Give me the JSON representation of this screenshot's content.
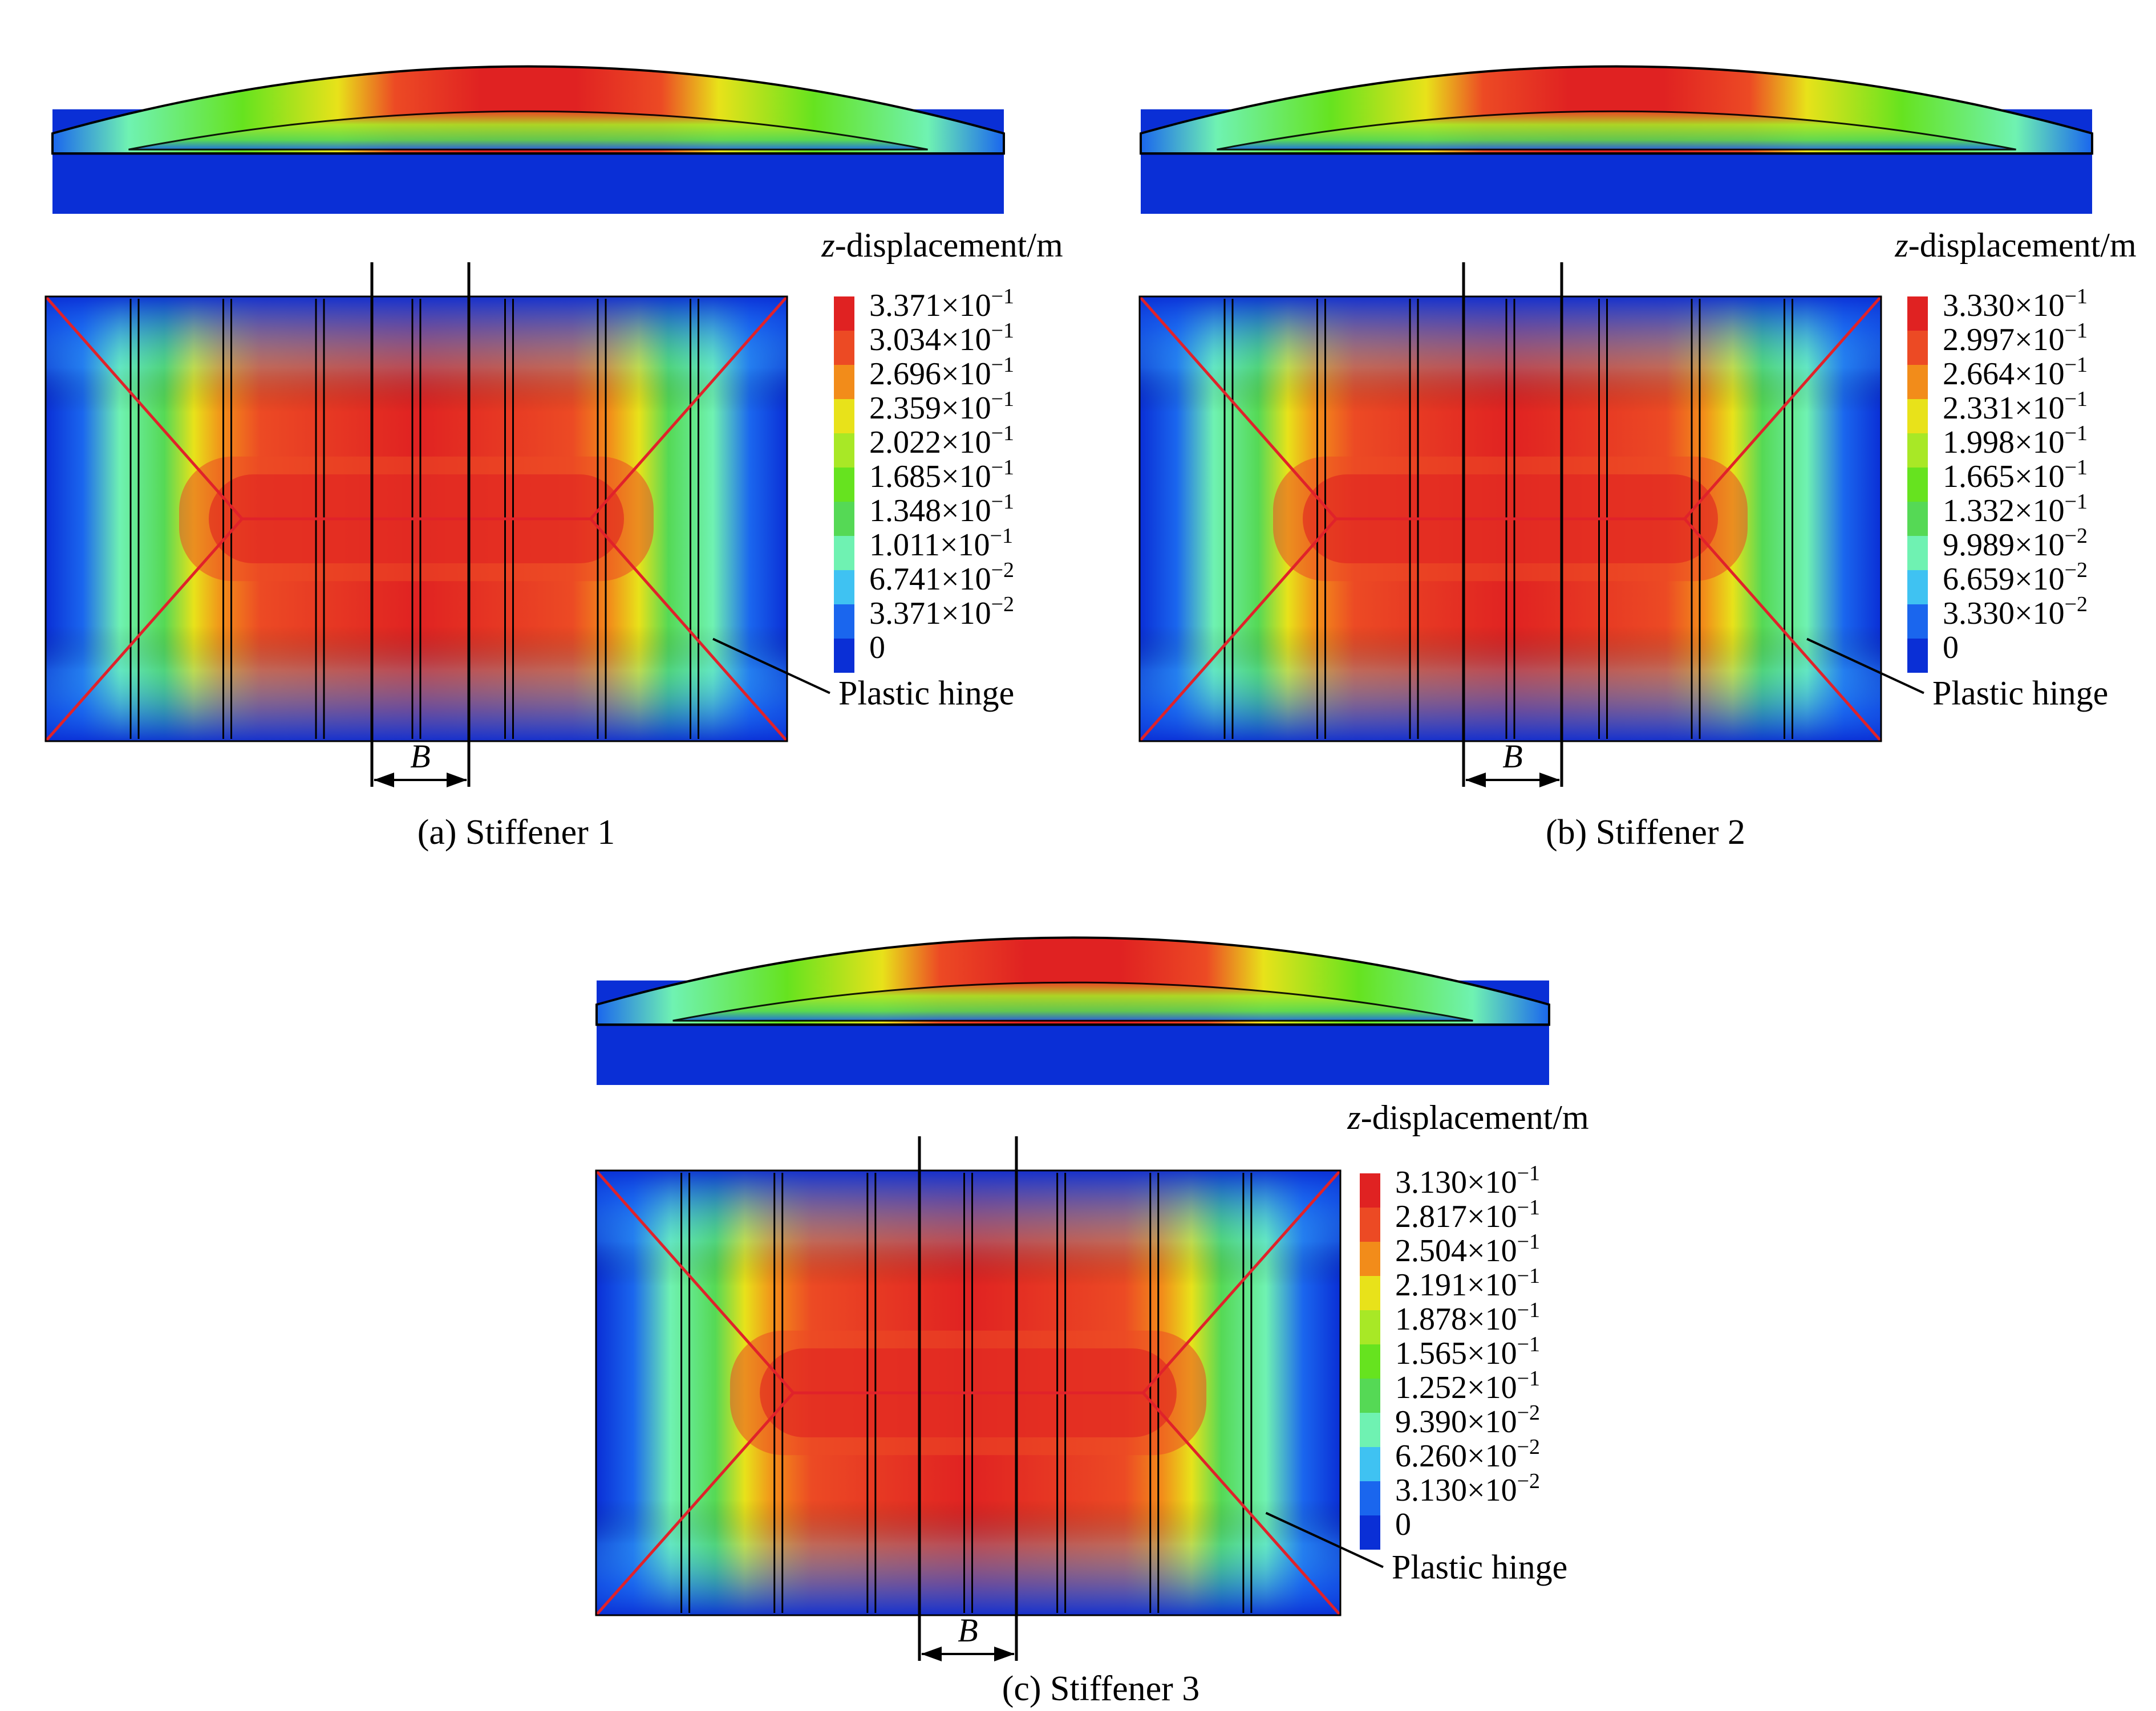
{
  "palette": [
    "#0a2fd6",
    "#1a66ee",
    "#3fc2f2",
    "#6ff2b2",
    "#55d955",
    "#66e31f",
    "#a8e826",
    "#e8e21a",
    "#f28c1a",
    "#ec4a24",
    "#e02222"
  ],
  "colors": {
    "red_hinge_line": "#e0222a",
    "stiffener_line": "#000000"
  },
  "colorbar_title_italic": "z",
  "colorbar_title_rest": "-displacement/m",
  "hinge_label": "Plastic hinge",
  "b_label": "B",
  "panels": [
    {
      "caption": "(a) Stiffener 1",
      "ticks": [
        {
          "m": "3.371",
          "e": "−1"
        },
        {
          "m": "3.034",
          "e": "−1"
        },
        {
          "m": "2.696",
          "e": "−1"
        },
        {
          "m": "2.359",
          "e": "−1"
        },
        {
          "m": "2.022",
          "e": "−1"
        },
        {
          "m": "1.685",
          "e": "−1"
        },
        {
          "m": "1.348",
          "e": "−1"
        },
        {
          "m": "1.011",
          "e": "−1"
        },
        {
          "m": "6.741",
          "e": "−2"
        },
        {
          "m": "3.371",
          "e": "−2"
        },
        {
          "m": "0",
          "e": ""
        }
      ]
    },
    {
      "caption": "(b) Stiffener 2",
      "ticks": [
        {
          "m": "3.330",
          "e": "−1"
        },
        {
          "m": "2.997",
          "e": "−1"
        },
        {
          "m": "2.664",
          "e": "−1"
        },
        {
          "m": "2.331",
          "e": "−1"
        },
        {
          "m": "1.998",
          "e": "−1"
        },
        {
          "m": "1.665",
          "e": "−1"
        },
        {
          "m": "1.332",
          "e": "−1"
        },
        {
          "m": "9.989",
          "e": "−2"
        },
        {
          "m": "6.659",
          "e": "−2"
        },
        {
          "m": "3.330",
          "e": "−2"
        },
        {
          "m": "0",
          "e": ""
        }
      ]
    },
    {
      "caption": "(c) Stiffener 3",
      "ticks": [
        {
          "m": "3.130",
          "e": "−1"
        },
        {
          "m": "2.817",
          "e": "−1"
        },
        {
          "m": "2.504",
          "e": "−1"
        },
        {
          "m": "2.191",
          "e": "−1"
        },
        {
          "m": "1.878",
          "e": "−1"
        },
        {
          "m": "1.565",
          "e": "−1"
        },
        {
          "m": "1.252",
          "e": "−1"
        },
        {
          "m": "9.390",
          "e": "−2"
        },
        {
          "m": "6.260",
          "e": "−2"
        },
        {
          "m": "3.130",
          "e": "−2"
        },
        {
          "m": "0",
          "e": ""
        }
      ]
    }
  ]
}
